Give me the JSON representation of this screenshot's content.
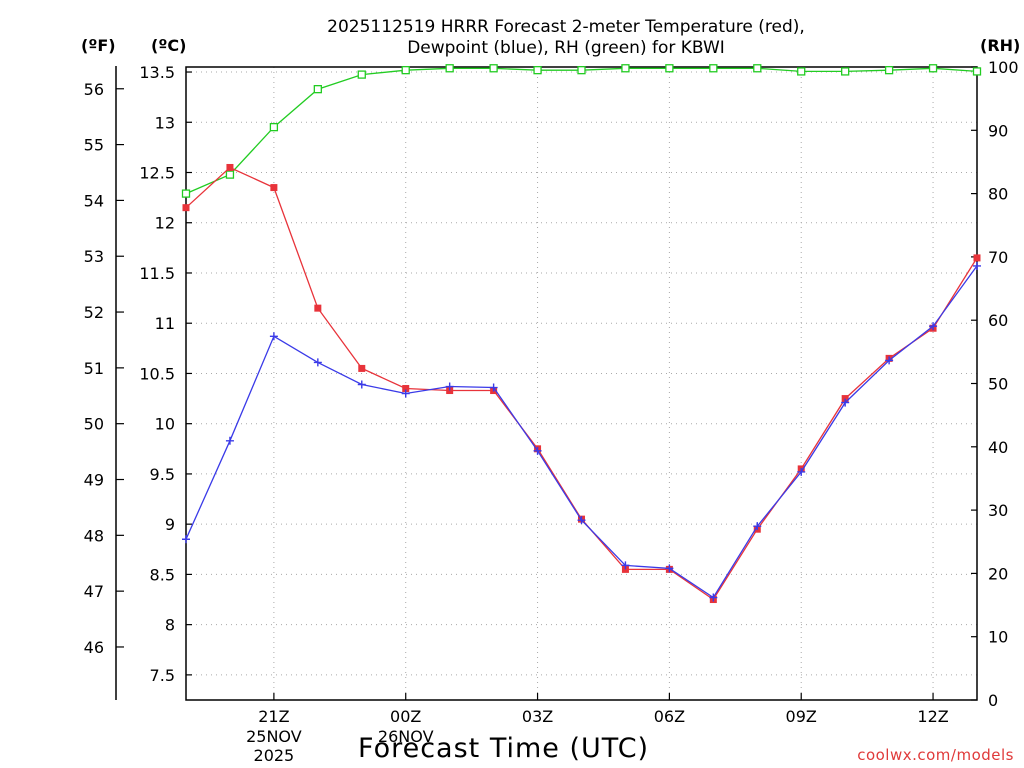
{
  "title": {
    "line1": "2025112519 HRRR Forecast 2-meter Temperature (red),",
    "line2": "Dewpoint (blue), RH (green) for KBWI"
  },
  "units": {
    "fahrenheit": "(ºF)",
    "celsius": "(ºC)",
    "rh": "(RH)"
  },
  "xaxis_title": "Forecast Time (UTC)",
  "credit": "coolwx.com/models",
  "colors": {
    "temperature": "#e8333a",
    "dewpoint": "#3a3ae8",
    "rh": "#22cc22",
    "grid": "#aaaaaa"
  },
  "chart_data": {
    "type": "line",
    "title": "2025112519 HRRR Forecast 2-meter Temperature (red), Dewpoint (blue), RH (green) for KBWI",
    "xlabel": "Forecast Time (UTC)",
    "x": [
      "19Z",
      "20Z",
      "21Z",
      "22Z",
      "23Z",
      "00Z",
      "01Z",
      "02Z",
      "03Z",
      "04Z",
      "05Z",
      "06Z",
      "07Z",
      "08Z",
      "09Z",
      "10Z",
      "11Z",
      "12Z",
      "13Z"
    ],
    "x_ticks": [
      {
        "label": "21Z",
        "index": 2,
        "sub": [
          "25NOV",
          "2025"
        ]
      },
      {
        "label": "00Z",
        "index": 5,
        "sub": [
          "26NOV"
        ]
      },
      {
        "label": "03Z",
        "index": 8,
        "sub": []
      },
      {
        "label": "06Z",
        "index": 11,
        "sub": []
      },
      {
        "label": "09Z",
        "index": 14,
        "sub": []
      },
      {
        "label": "12Z",
        "index": 17,
        "sub": []
      }
    ],
    "y_celsius": {
      "range": [
        7.25,
        13.55
      ],
      "ticks": [
        "7.5",
        "8",
        "8.5",
        "9",
        "9.5",
        "10",
        "10.5",
        "11",
        "11.5",
        "12",
        "12.5",
        "13",
        "13.5"
      ]
    },
    "y_fahrenheit": {
      "range": [
        45.05,
        56.39
      ],
      "ticks": [
        "46",
        "47",
        "48",
        "49",
        "50",
        "51",
        "52",
        "53",
        "54",
        "55",
        "56"
      ]
    },
    "y_rh": {
      "range": [
        0,
        100
      ],
      "ticks": [
        "0",
        "10",
        "20",
        "30",
        "40",
        "50",
        "60",
        "70",
        "80",
        "90",
        "100"
      ]
    },
    "grid": true,
    "series": [
      {
        "name": "Temperature (red)",
        "axis": "celsius",
        "marker": "filled-square",
        "values": [
          12.15,
          12.55,
          12.35,
          11.15,
          10.55,
          10.35,
          10.33,
          10.33,
          9.75,
          9.05,
          8.55,
          8.55,
          8.25,
          8.95,
          9.55,
          10.25,
          10.65,
          10.95,
          11.65
        ]
      },
      {
        "name": "Dewpoint (blue)",
        "axis": "celsius",
        "marker": "plus",
        "values": [
          8.85,
          9.83,
          10.87,
          10.61,
          10.39,
          10.3,
          10.37,
          10.36,
          9.73,
          9.04,
          8.59,
          8.56,
          8.27,
          8.98,
          9.52,
          10.21,
          10.63,
          10.97,
          11.57
        ]
      },
      {
        "name": "RH (green)",
        "axis": "rh",
        "marker": "open-square",
        "values": [
          80.0,
          83.0,
          90.5,
          96.5,
          98.8,
          99.5,
          99.8,
          99.8,
          99.5,
          99.5,
          99.8,
          99.8,
          99.8,
          99.8,
          99.3,
          99.3,
          99.5,
          99.8,
          99.3
        ]
      }
    ]
  }
}
